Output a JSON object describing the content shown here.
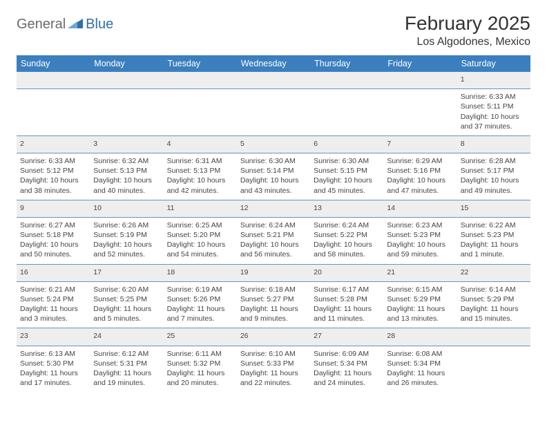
{
  "brand": {
    "part1": "General",
    "part2": "Blue",
    "triangle_color": "#2f6fa8"
  },
  "header": {
    "month_title": "February 2025",
    "location": "Los Algodones, Mexico"
  },
  "colors": {
    "header_bg": "#3b7fbf",
    "header_fg": "#ffffff",
    "row_divider": "#6b93b7",
    "daynum_bg": "#eeeeee",
    "text": "#444444"
  },
  "weekdays": [
    "Sunday",
    "Monday",
    "Tuesday",
    "Wednesday",
    "Thursday",
    "Friday",
    "Saturday"
  ],
  "weeks": [
    {
      "nums": [
        "",
        "",
        "",
        "",
        "",
        "",
        "1"
      ],
      "cells": [
        null,
        null,
        null,
        null,
        null,
        null,
        {
          "sunrise": "6:33 AM",
          "sunset": "5:11 PM",
          "daylight": "10 hours and 37 minutes."
        }
      ]
    },
    {
      "nums": [
        "2",
        "3",
        "4",
        "5",
        "6",
        "7",
        "8"
      ],
      "cells": [
        {
          "sunrise": "6:33 AM",
          "sunset": "5:12 PM",
          "daylight": "10 hours and 38 minutes."
        },
        {
          "sunrise": "6:32 AM",
          "sunset": "5:13 PM",
          "daylight": "10 hours and 40 minutes."
        },
        {
          "sunrise": "6:31 AM",
          "sunset": "5:13 PM",
          "daylight": "10 hours and 42 minutes."
        },
        {
          "sunrise": "6:30 AM",
          "sunset": "5:14 PM",
          "daylight": "10 hours and 43 minutes."
        },
        {
          "sunrise": "6:30 AM",
          "sunset": "5:15 PM",
          "daylight": "10 hours and 45 minutes."
        },
        {
          "sunrise": "6:29 AM",
          "sunset": "5:16 PM",
          "daylight": "10 hours and 47 minutes."
        },
        {
          "sunrise": "6:28 AM",
          "sunset": "5:17 PM",
          "daylight": "10 hours and 49 minutes."
        }
      ]
    },
    {
      "nums": [
        "9",
        "10",
        "11",
        "12",
        "13",
        "14",
        "15"
      ],
      "cells": [
        {
          "sunrise": "6:27 AM",
          "sunset": "5:18 PM",
          "daylight": "10 hours and 50 minutes."
        },
        {
          "sunrise": "6:26 AM",
          "sunset": "5:19 PM",
          "daylight": "10 hours and 52 minutes."
        },
        {
          "sunrise": "6:25 AM",
          "sunset": "5:20 PM",
          "daylight": "10 hours and 54 minutes."
        },
        {
          "sunrise": "6:24 AM",
          "sunset": "5:21 PM",
          "daylight": "10 hours and 56 minutes."
        },
        {
          "sunrise": "6:24 AM",
          "sunset": "5:22 PM",
          "daylight": "10 hours and 58 minutes."
        },
        {
          "sunrise": "6:23 AM",
          "sunset": "5:23 PM",
          "daylight": "10 hours and 59 minutes."
        },
        {
          "sunrise": "6:22 AM",
          "sunset": "5:23 PM",
          "daylight": "11 hours and 1 minute."
        }
      ]
    },
    {
      "nums": [
        "16",
        "17",
        "18",
        "19",
        "20",
        "21",
        "22"
      ],
      "cells": [
        {
          "sunrise": "6:21 AM",
          "sunset": "5:24 PM",
          "daylight": "11 hours and 3 minutes."
        },
        {
          "sunrise": "6:20 AM",
          "sunset": "5:25 PM",
          "daylight": "11 hours and 5 minutes."
        },
        {
          "sunrise": "6:19 AM",
          "sunset": "5:26 PM",
          "daylight": "11 hours and 7 minutes."
        },
        {
          "sunrise": "6:18 AM",
          "sunset": "5:27 PM",
          "daylight": "11 hours and 9 minutes."
        },
        {
          "sunrise": "6:17 AM",
          "sunset": "5:28 PM",
          "daylight": "11 hours and 11 minutes."
        },
        {
          "sunrise": "6:15 AM",
          "sunset": "5:29 PM",
          "daylight": "11 hours and 13 minutes."
        },
        {
          "sunrise": "6:14 AM",
          "sunset": "5:29 PM",
          "daylight": "11 hours and 15 minutes."
        }
      ]
    },
    {
      "nums": [
        "23",
        "24",
        "25",
        "26",
        "27",
        "28",
        ""
      ],
      "cells": [
        {
          "sunrise": "6:13 AM",
          "sunset": "5:30 PM",
          "daylight": "11 hours and 17 minutes."
        },
        {
          "sunrise": "6:12 AM",
          "sunset": "5:31 PM",
          "daylight": "11 hours and 19 minutes."
        },
        {
          "sunrise": "6:11 AM",
          "sunset": "5:32 PM",
          "daylight": "11 hours and 20 minutes."
        },
        {
          "sunrise": "6:10 AM",
          "sunset": "5:33 PM",
          "daylight": "11 hours and 22 minutes."
        },
        {
          "sunrise": "6:09 AM",
          "sunset": "5:34 PM",
          "daylight": "11 hours and 24 minutes."
        },
        {
          "sunrise": "6:08 AM",
          "sunset": "5:34 PM",
          "daylight": "11 hours and 26 minutes."
        },
        null
      ]
    }
  ],
  "labels": {
    "sunrise": "Sunrise:",
    "sunset": "Sunset:",
    "daylight": "Daylight:"
  }
}
